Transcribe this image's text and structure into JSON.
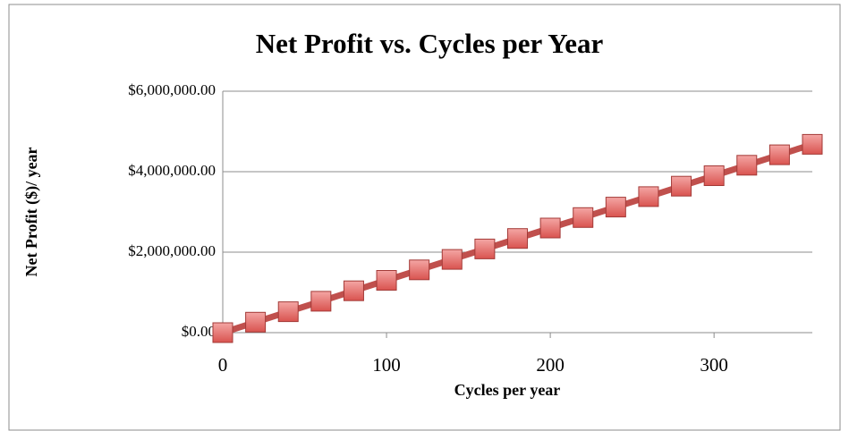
{
  "chart_data": {
    "type": "line",
    "title": "Net Profit vs. Cycles per Year",
    "xlabel": "Cycles per year",
    "ylabel": "Net Profit ($)/ year",
    "x": [
      0,
      20,
      40,
      60,
      80,
      100,
      120,
      140,
      160,
      180,
      200,
      220,
      240,
      260,
      280,
      300,
      320,
      340,
      360
    ],
    "series": [
      {
        "name": "Net Profit",
        "color": "#c0504d",
        "values": [
          0,
          260000,
          520000,
          780000,
          1040000,
          1300000,
          1560000,
          1820000,
          2080000,
          2340000,
          2600000,
          2860000,
          3120000,
          3380000,
          3640000,
          3900000,
          4160000,
          4420000,
          4680000
        ]
      }
    ],
    "xlim": [
      0,
      360
    ],
    "xticks": [
      0,
      100,
      200,
      300
    ],
    "ylim": [
      0,
      6000000
    ],
    "yticks": [
      {
        "value": 0,
        "label": "$0.00"
      },
      {
        "value": 2000000,
        "label": "$2,000,000.00"
      },
      {
        "value": 4000000,
        "label": "$4,000,000.00"
      },
      {
        "value": 6000000,
        "label": "$6,000,000.00"
      }
    ],
    "grid": true
  }
}
